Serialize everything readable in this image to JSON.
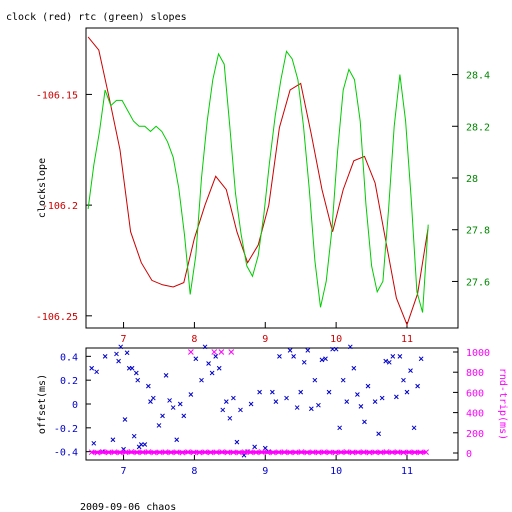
{
  "title": "clock (red) rtc (green) slopes",
  "footer": "2009-09-06 chaos",
  "chart_data": [
    {
      "type": "line",
      "ylabel": "clockslope",
      "y2label": "",
      "xlim": [
        6.47,
        11.72
      ],
      "ylim": [
        -106.2555,
        -106.12
      ],
      "y2lim": [
        27.42,
        28.58
      ],
      "x_ticks": [
        7,
        8,
        9,
        10,
        11
      ],
      "y_ticks": [
        -106.25,
        -106.2,
        -106.15
      ],
      "y_tick_labels": [
        "-106.25",
        "-106.2",
        "-106.15"
      ],
      "y2_ticks": [
        27.6,
        27.8,
        28.0,
        28.2,
        28.4
      ],
      "y2_tick_labels": [
        "27.6",
        "27.8",
        "28",
        "28.2",
        "28.4"
      ],
      "colors": {
        "clock": "#cc0000",
        "rtc": "#00cc00",
        "axis_left": "#cc0000",
        "axis_right": "#008800",
        "x_ticks": "#cc0000"
      },
      "series": [
        {
          "key": "clock",
          "x": [
            6.5,
            6.65,
            6.8,
            6.95,
            7.1,
            7.25,
            7.4,
            7.55,
            7.7,
            7.85,
            8.0,
            8.15,
            8.3,
            8.45,
            8.6,
            8.75,
            8.9,
            9.05,
            9.2,
            9.35,
            9.5,
            9.65,
            9.8,
            9.95,
            10.1,
            10.25,
            10.4,
            10.55,
            10.7,
            10.85,
            11.0,
            11.15,
            11.3
          ],
          "y": [
            -106.124,
            -106.13,
            -106.152,
            -106.175,
            -106.212,
            -106.226,
            -106.234,
            -106.236,
            -106.237,
            -106.235,
            -106.215,
            -106.2,
            -106.187,
            -106.193,
            -106.212,
            -106.226,
            -106.218,
            -106.2,
            -106.165,
            -106.148,
            -106.145,
            -106.168,
            -106.193,
            -106.212,
            -106.193,
            -106.18,
            -106.178,
            -106.19,
            -106.216,
            -106.242,
            -106.254,
            -106.24,
            -106.21
          ]
        },
        {
          "key": "rtc",
          "x": [
            6.5,
            6.58,
            6.66,
            6.74,
            6.82,
            6.9,
            6.98,
            7.06,
            7.14,
            7.22,
            7.3,
            7.38,
            7.46,
            7.54,
            7.62,
            7.7,
            7.78,
            7.86,
            7.94,
            8.02,
            8.1,
            8.18,
            8.26,
            8.34,
            8.42,
            8.5,
            8.58,
            8.66,
            8.74,
            8.82,
            8.9,
            8.98,
            9.06,
            9.14,
            9.22,
            9.3,
            9.38,
            9.46,
            9.54,
            9.62,
            9.7,
            9.78,
            9.86,
            9.94,
            10.02,
            10.1,
            10.18,
            10.26,
            10.34,
            10.42,
            10.5,
            10.58,
            10.66,
            10.74,
            10.82,
            10.9,
            10.98,
            11.06,
            11.14,
            11.22,
            11.3
          ],
          "y": [
            27.88,
            28.05,
            28.18,
            28.34,
            28.28,
            28.3,
            28.3,
            28.26,
            28.22,
            28.2,
            28.2,
            28.18,
            28.2,
            28.18,
            28.14,
            28.08,
            27.96,
            27.78,
            27.55,
            27.7,
            28.0,
            28.22,
            28.38,
            28.48,
            28.44,
            28.2,
            27.94,
            27.78,
            27.66,
            27.62,
            27.7,
            27.86,
            28.06,
            28.24,
            28.38,
            28.49,
            28.46,
            28.38,
            28.2,
            27.96,
            27.68,
            27.5,
            27.6,
            27.8,
            28.1,
            28.34,
            28.42,
            28.38,
            28.22,
            27.9,
            27.66,
            27.56,
            27.6,
            27.88,
            28.2,
            28.4,
            28.22,
            27.92,
            27.56,
            27.48,
            27.82
          ]
        }
      ]
    },
    {
      "type": "scatter",
      "ylabel": "offset(ms)",
      "y2label": "rnd-trip(ms)",
      "xlim": [
        6.47,
        11.72
      ],
      "ylim": [
        -0.47,
        0.47
      ],
      "y2lim": [
        0,
        1000
      ],
      "x_ticks": [
        7,
        8,
        9,
        10,
        11
      ],
      "y_ticks": [
        -0.4,
        -0.2,
        0,
        0.2,
        0.4
      ],
      "y_tick_labels": [
        "-0.4",
        "-0.2",
        "0",
        "0.2",
        "0.4"
      ],
      "y2_ticks": [
        0,
        200,
        400,
        600,
        800,
        1000
      ],
      "y2_tick_labels": [
        "0",
        "200",
        "400",
        "600",
        "800",
        "1000"
      ],
      "colors": {
        "offset": "#0000cc",
        "rndtrip": "#ff00ff",
        "x_ticks": "#0000cc"
      },
      "series": [
        {
          "key": "offset",
          "marker": "x",
          "x": [
            6.55,
            6.58,
            6.62,
            6.7,
            6.74,
            6.85,
            6.9,
            6.93,
            6.96,
            7.0,
            7.02,
            7.05,
            7.08,
            7.12,
            7.15,
            7.18,
            7.2,
            7.22,
            7.25,
            7.3,
            7.35,
            7.38,
            7.42,
            7.5,
            7.55,
            7.6,
            7.65,
            7.7,
            7.75,
            7.8,
            7.85,
            7.95,
            8.02,
            8.1,
            8.15,
            8.2,
            8.25,
            8.3,
            8.35,
            8.4,
            8.45,
            8.5,
            8.55,
            8.6,
            8.65,
            8.7,
            8.75,
            8.8,
            8.85,
            8.92,
            9.0,
            9.05,
            9.1,
            9.15,
            9.2,
            9.3,
            9.35,
            9.4,
            9.45,
            9.5,
            9.55,
            9.6,
            9.65,
            9.7,
            9.75,
            9.8,
            9.85,
            9.9,
            9.95,
            10.0,
            10.05,
            10.1,
            10.15,
            10.2,
            10.25,
            10.3,
            10.35,
            10.4,
            10.45,
            10.55,
            10.6,
            10.65,
            10.7,
            10.75,
            10.8,
            10.85,
            10.9,
            10.95,
            11.0,
            11.05,
            11.1,
            11.15,
            11.2
          ],
          "y": [
            0.3,
            -0.33,
            0.27,
            -0.4,
            0.4,
            -0.3,
            0.42,
            0.36,
            0.48,
            -0.38,
            -0.13,
            0.43,
            0.3,
            0.3,
            -0.27,
            0.26,
            0.2,
            -0.36,
            -0.34,
            -0.34,
            0.15,
            0.02,
            0.05,
            -0.18,
            -0.1,
            0.24,
            0.03,
            -0.03,
            -0.3,
            0.0,
            -0.1,
            0.08,
            0.38,
            0.2,
            0.48,
            0.34,
            0.26,
            0.4,
            0.3,
            -0.05,
            0.02,
            -0.12,
            0.05,
            -0.32,
            -0.05,
            -0.43,
            -0.4,
            0.0,
            -0.36,
            0.1,
            -0.37,
            -0.4,
            0.1,
            0.02,
            0.4,
            0.05,
            0.45,
            0.4,
            -0.03,
            0.1,
            0.35,
            0.45,
            -0.04,
            0.2,
            -0.01,
            0.37,
            0.38,
            0.1,
            0.46,
            0.46,
            -0.2,
            0.2,
            0.02,
            0.48,
            0.3,
            0.08,
            -0.02,
            -0.15,
            0.15,
            0.02,
            -0.25,
            0.05,
            0.36,
            0.35,
            0.4,
            0.06,
            0.4,
            0.2,
            0.1,
            0.28,
            -0.2,
            0.15,
            0.38
          ]
        },
        {
          "key": "rndtrip",
          "marker": "x",
          "x": [
            6.55,
            6.63,
            6.71,
            6.79,
            6.87,
            6.95,
            7.03,
            7.11,
            7.19,
            7.27,
            7.35,
            7.43,
            7.51,
            7.59,
            7.67,
            7.75,
            7.83,
            7.91,
            7.99,
            8.07,
            8.15,
            8.23,
            8.31,
            8.39,
            8.47,
            8.55,
            8.63,
            8.71,
            8.79,
            8.87,
            8.95,
            9.03,
            9.11,
            9.19,
            9.27,
            9.35,
            9.43,
            9.51,
            9.59,
            9.67,
            9.75,
            9.83,
            9.91,
            9.99,
            10.07,
            10.15,
            10.23,
            10.31,
            10.39,
            10.47,
            10.55,
            10.63,
            10.71,
            10.79,
            10.87,
            10.95,
            11.03,
            11.11,
            11.19,
            11.27,
            7.95,
            8.28,
            8.38,
            8.52
          ],
          "y": [
            8,
            4,
            10,
            6,
            9,
            5,
            7,
            11,
            6,
            8,
            10,
            5,
            7,
            9,
            6,
            8,
            4,
            10,
            7,
            5,
            9,
            6,
            8,
            10,
            6,
            7,
            5,
            9,
            8,
            6,
            10,
            7,
            5,
            8,
            9,
            6,
            7,
            10,
            5,
            8,
            6,
            9,
            7,
            5,
            8,
            10,
            6,
            7,
            9,
            5,
            8,
            6,
            10,
            7,
            9,
            5,
            8,
            6,
            7,
            9,
            1000,
            1000,
            1000,
            1000
          ]
        }
      ]
    }
  ]
}
